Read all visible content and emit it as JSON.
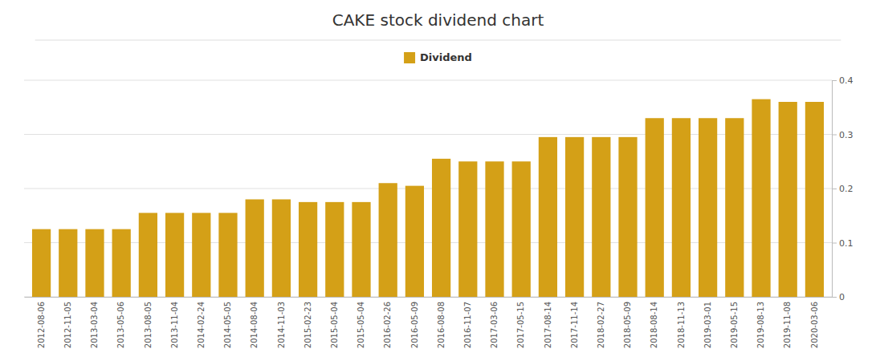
{
  "chart_data": {
    "type": "bar",
    "title": "CAKE stock dividend chart",
    "categories": [
      "2012-08-06",
      "2012-11-05",
      "2013-03-04",
      "2013-05-06",
      "2013-08-05",
      "2013-11-04",
      "2014-02-24",
      "2014-05-05",
      "2014-08-04",
      "2014-11-03",
      "2015-02-23",
      "2015-05-04",
      "2015-05-04",
      "2016-02-26",
      "2016-05-09",
      "2016-08-08",
      "2016-11-07",
      "2017-03-06",
      "2017-05-15",
      "2017-08-14",
      "2017-11-14",
      "2018-02-27",
      "2018-05-09",
      "2018-08-14",
      "2018-11-13",
      "2019-03-01",
      "2019-05-15",
      "2019-08-13",
      "2019-11-08",
      "2020-03-06"
    ],
    "series": [
      {
        "name": "Dividend",
        "color": "#D4A017",
        "values": [
          0.125,
          0.125,
          0.125,
          0.125,
          0.155,
          0.155,
          0.155,
          0.155,
          0.18,
          0.18,
          0.175,
          0.175,
          0.175,
          0.21,
          0.205,
          0.255,
          0.25,
          0.25,
          0.25,
          0.295,
          0.295,
          0.295,
          0.295,
          0.33,
          0.33,
          0.33,
          0.33,
          0.365,
          0.36,
          0.36
        ]
      }
    ],
    "ylim": [
      0,
      0.4
    ],
    "yticks": [
      0,
      0.1,
      0.2,
      0.3,
      0.4
    ],
    "grid": true,
    "legend": "top"
  }
}
